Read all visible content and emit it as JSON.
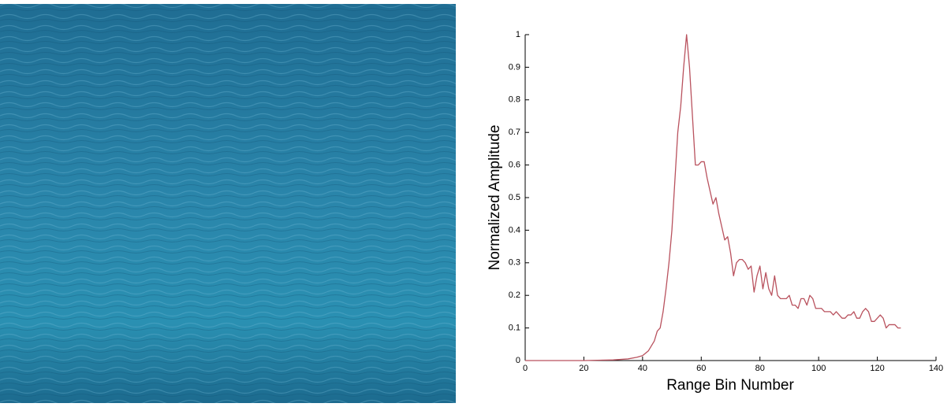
{
  "chart_data": {
    "type": "line",
    "xlabel": "Range Bin Number",
    "ylabel": "Normalized Amplitude",
    "x": [
      0,
      10,
      20,
      30,
      35,
      38,
      40,
      42,
      44,
      45,
      46,
      47,
      48,
      49,
      50,
      51,
      52,
      53,
      54,
      55,
      56,
      57,
      58,
      59,
      60,
      61,
      62,
      63,
      64,
      65,
      66,
      67,
      68,
      69,
      70,
      71,
      72,
      73,
      74,
      75,
      76,
      77,
      78,
      79,
      80,
      81,
      82,
      83,
      84,
      85,
      86,
      87,
      88,
      89,
      90,
      91,
      92,
      93,
      94,
      95,
      96,
      97,
      98,
      99,
      100,
      101,
      102,
      103,
      104,
      105,
      106,
      107,
      108,
      109,
      110,
      111,
      112,
      113,
      114,
      115,
      116,
      117,
      118,
      119,
      120,
      121,
      122,
      123,
      124,
      125,
      126,
      127,
      128
    ],
    "y": [
      0,
      0,
      0,
      0.002,
      0.005,
      0.01,
      0.015,
      0.03,
      0.06,
      0.09,
      0.1,
      0.15,
      0.22,
      0.3,
      0.4,
      0.55,
      0.7,
      0.78,
      0.9,
      1.0,
      0.9,
      0.75,
      0.6,
      0.6,
      0.61,
      0.61,
      0.56,
      0.52,
      0.48,
      0.5,
      0.45,
      0.41,
      0.37,
      0.38,
      0.33,
      0.26,
      0.3,
      0.31,
      0.31,
      0.3,
      0.28,
      0.29,
      0.21,
      0.26,
      0.29,
      0.22,
      0.27,
      0.22,
      0.2,
      0.26,
      0.2,
      0.19,
      0.19,
      0.19,
      0.2,
      0.17,
      0.17,
      0.16,
      0.19,
      0.19,
      0.17,
      0.2,
      0.19,
      0.16,
      0.16,
      0.16,
      0.15,
      0.15,
      0.15,
      0.14,
      0.15,
      0.14,
      0.13,
      0.13,
      0.14,
      0.14,
      0.15,
      0.13,
      0.13,
      0.15,
      0.16,
      0.15,
      0.12,
      0.12,
      0.13,
      0.14,
      0.13,
      0.1,
      0.11,
      0.11,
      0.11,
      0.1,
      0.1
    ],
    "color": "#b9525e",
    "xlim": [
      0,
      140
    ],
    "xticks": [
      0,
      20,
      40,
      60,
      80,
      100,
      120,
      140
    ],
    "ylim": [
      0,
      1
    ],
    "yticks": [
      0,
      0.1,
      0.2,
      0.3,
      0.4,
      0.5,
      0.6,
      0.7,
      0.8,
      0.9,
      1
    ],
    "grid": false
  }
}
